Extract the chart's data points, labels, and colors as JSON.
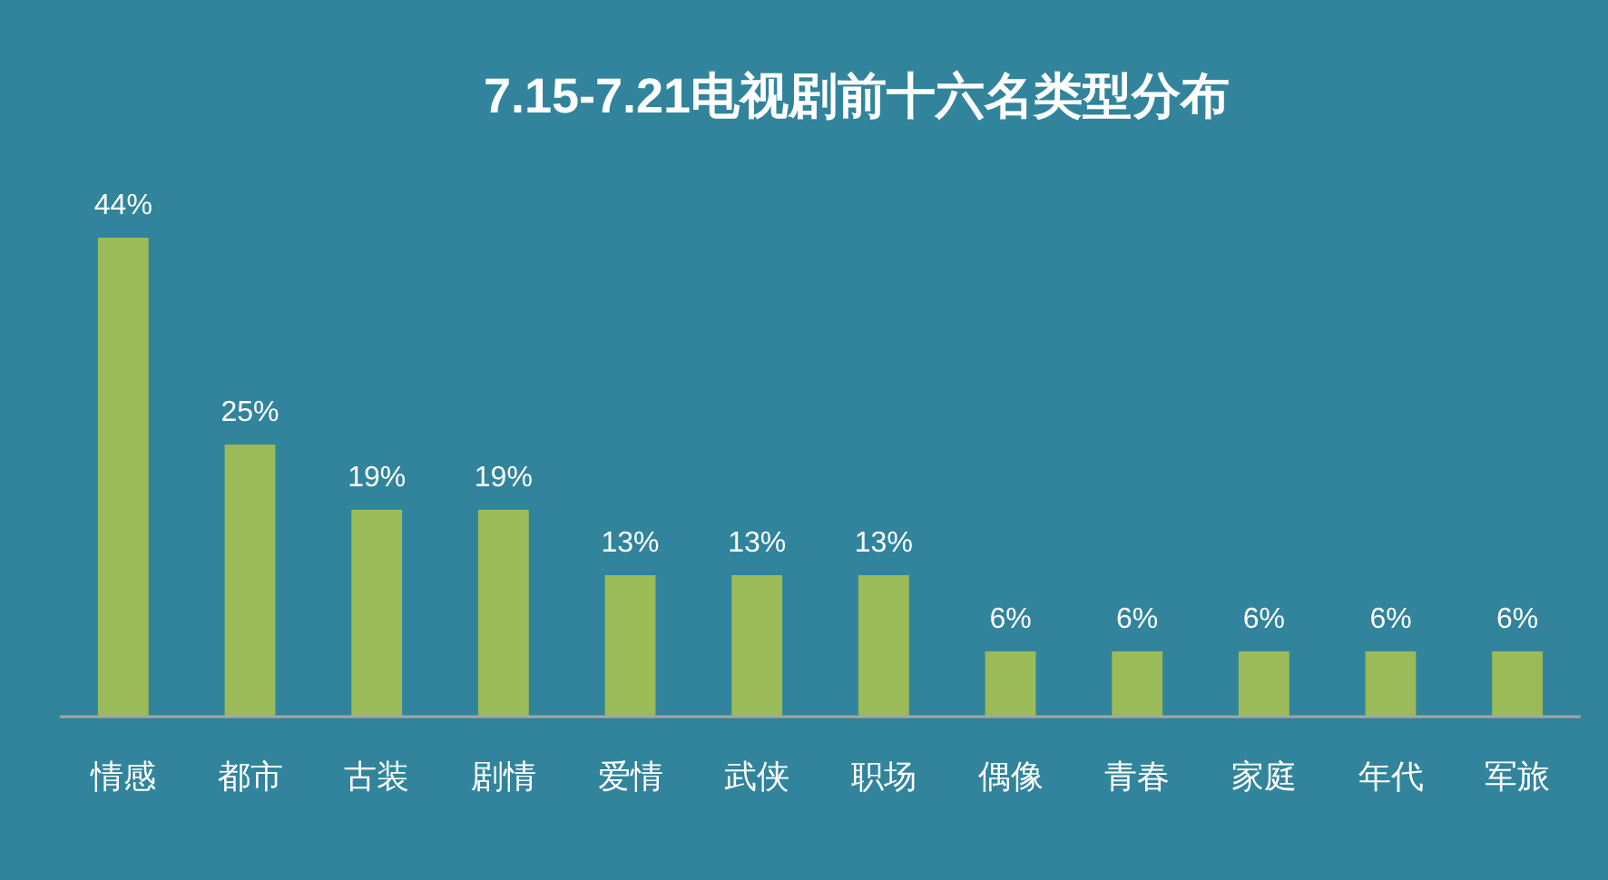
{
  "chart_data": {
    "type": "bar",
    "title": "7.15-7.21电视剧前十六名类型分布",
    "categories": [
      "情感",
      "都市",
      "古装",
      "剧情",
      "爱情",
      "武侠",
      "职场",
      "偶像",
      "青春",
      "家庭",
      "年代",
      "军旅"
    ],
    "values": [
      44,
      25,
      19,
      19,
      13,
      13,
      13,
      6,
      6,
      6,
      6,
      6
    ],
    "value_labels": [
      "44%",
      "25%",
      "19%",
      "19%",
      "13%",
      "13%",
      "13%",
      "6%",
      "6%",
      "6%",
      "6%",
      "6%"
    ],
    "color": "#9bbb59"
  }
}
